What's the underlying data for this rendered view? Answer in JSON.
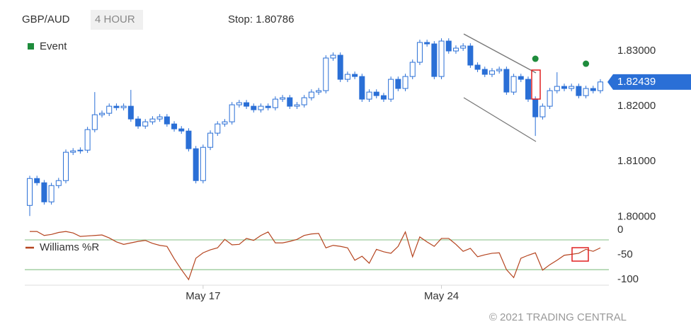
{
  "chart_data": [
    {
      "type": "candlestick",
      "title": "GBP/AUD",
      "subtitle": "4 HOUR",
      "annotation": "Stop: 1.80786",
      "categories": [
        null,
        null,
        null,
        null,
        null,
        null,
        null,
        null,
        null,
        null,
        null,
        null,
        null,
        null,
        null,
        null,
        null,
        null,
        null,
        null,
        null,
        null,
        null,
        null,
        "May 17",
        null,
        null,
        null,
        null,
        null,
        null,
        null,
        null,
        null,
        null,
        null,
        null,
        null,
        null,
        null,
        null,
        null,
        null,
        null,
        null,
        null,
        null,
        null,
        null,
        null,
        null,
        null,
        null,
        null,
        null,
        null,
        null,
        "May 24",
        null,
        null,
        null,
        null,
        null,
        null,
        null,
        null,
        null,
        null,
        null,
        null,
        null,
        null,
        null,
        null,
        null,
        null,
        null,
        null,
        null,
        null
      ],
      "open": [
        1.80205,
        1.80692,
        1.80615,
        1.80269,
        1.80564,
        1.80654,
        1.81167,
        1.81192,
        1.81205,
        1.81577,
        1.81846,
        1.81872,
        1.82,
        1.81974,
        1.82,
        1.81769,
        1.81641,
        1.81718,
        1.81769,
        1.81808,
        1.81679,
        1.8159,
        1.81551,
        1.81231,
        1.80654,
        1.81256,
        1.81513,
        1.81679,
        1.81718,
        1.82026,
        1.82064,
        1.82,
        1.81936,
        1.82,
        1.81974,
        1.82128,
        1.82154,
        1.82,
        1.82026,
        1.82154,
        1.82256,
        1.82282,
        1.82872,
        1.82923,
        1.82487,
        1.82577,
        1.82538,
        1.82128,
        1.82256,
        1.82192,
        1.82128,
        1.82487,
        1.82321,
        1.82538,
        1.82795,
        1.83154,
        1.83128,
        1.82538,
        1.83179,
        1.83,
        1.83051,
        1.8309,
        1.82744,
        1.82667,
        1.82577,
        1.82641,
        1.82667,
        1.82256,
        1.82538,
        1.82487,
        1.82128,
        1.81808,
        1.82,
        1.82282,
        1.82359,
        1.82321,
        1.82359,
        1.82192,
        1.82321,
        1.82282
      ],
      "high": [
        1.80742,
        1.80742,
        1.80665,
        1.80614,
        1.80704,
        1.81217,
        1.81242,
        1.81255,
        1.81627,
        1.82256,
        1.81922,
        1.8205,
        1.8205,
        1.8205,
        1.82295,
        1.81819,
        1.81768,
        1.81819,
        1.81858,
        1.81858,
        1.81729,
        1.8164,
        1.81601,
        1.81281,
        1.81306,
        1.81563,
        1.81729,
        1.81768,
        1.82076,
        1.82114,
        1.82114,
        1.8205,
        1.8205,
        1.8205,
        1.82178,
        1.82204,
        1.82204,
        1.82076,
        1.82204,
        1.82306,
        1.82332,
        1.82922,
        1.82973,
        1.82973,
        1.82627,
        1.82627,
        1.82588,
        1.82306,
        1.82306,
        1.82242,
        1.82537,
        1.82537,
        1.82588,
        1.82845,
        1.83204,
        1.83204,
        1.83178,
        1.83229,
        1.83229,
        1.83101,
        1.8314,
        1.8314,
        1.82794,
        1.82717,
        1.82691,
        1.82717,
        1.82717,
        1.82588,
        1.82588,
        1.82537,
        1.82178,
        1.8205,
        1.82332,
        1.82615,
        1.82409,
        1.82409,
        1.82409,
        1.82371,
        1.82371,
        1.82489
      ],
      "low": [
        1.80013,
        1.80565,
        1.80219,
        1.80219,
        1.80514,
        1.80604,
        1.81117,
        1.81142,
        1.81155,
        1.81527,
        1.81796,
        1.81822,
        1.81924,
        1.81924,
        1.81719,
        1.81591,
        1.81591,
        1.81668,
        1.81719,
        1.81629,
        1.8154,
        1.81501,
        1.81181,
        1.80604,
        1.80604,
        1.81206,
        1.81463,
        1.81629,
        1.81668,
        1.81976,
        1.8195,
        1.81886,
        1.81886,
        1.81924,
        1.81924,
        1.82078,
        1.8195,
        1.8195,
        1.81976,
        1.82104,
        1.82206,
        1.82232,
        1.82822,
        1.82437,
        1.82437,
        1.82488,
        1.82078,
        1.82078,
        1.82142,
        1.82078,
        1.82078,
        1.82271,
        1.82271,
        1.82488,
        1.82745,
        1.83078,
        1.82488,
        1.82488,
        1.8295,
        1.8295,
        1.83001,
        1.82694,
        1.82617,
        1.82527,
        1.82527,
        1.82591,
        1.82206,
        1.82206,
        1.82437,
        1.82078,
        1.81462,
        1.81758,
        1.8195,
        1.82232,
        1.82271,
        1.82271,
        1.82142,
        1.82142,
        1.82232,
        1.82232
      ],
      "close": [
        1.80692,
        1.80615,
        1.80269,
        1.80564,
        1.80654,
        1.81167,
        1.81192,
        1.81205,
        1.81577,
        1.81846,
        1.81872,
        1.82,
        1.81974,
        1.82,
        1.81769,
        1.81641,
        1.81718,
        1.81769,
        1.81808,
        1.81679,
        1.8159,
        1.81551,
        1.81231,
        1.80654,
        1.81256,
        1.81513,
        1.81679,
        1.81718,
        1.82026,
        1.82064,
        1.82,
        1.81936,
        1.82,
        1.81974,
        1.82128,
        1.82154,
        1.82,
        1.82026,
        1.82154,
        1.82256,
        1.82282,
        1.82872,
        1.82923,
        1.82487,
        1.82577,
        1.82538,
        1.82128,
        1.82256,
        1.82192,
        1.82128,
        1.82487,
        1.82321,
        1.82538,
        1.82795,
        1.83154,
        1.83128,
        1.82538,
        1.83179,
        1.83,
        1.83051,
        1.8309,
        1.82744,
        1.82667,
        1.82577,
        1.82641,
        1.82667,
        1.82256,
        1.82538,
        1.82487,
        1.82128,
        1.81808,
        1.82,
        1.82282,
        1.82359,
        1.82321,
        1.82359,
        1.82192,
        1.82321,
        1.82282,
        1.82439
      ],
      "up_color": "#ffffff",
      "down_color": "#2a6fd6",
      "outline_color": "#2a6fd6",
      "ylim": [
        1.7985,
        1.8341
      ],
      "yticks": [
        {
          "value": 1.8,
          "label": "1.80000"
        },
        {
          "value": 1.81,
          "label": "1.81000"
        },
        {
          "value": 1.82,
          "label": "1.82000"
        },
        {
          "value": 1.83,
          "label": "1.83000"
        }
      ],
      "last_price": 1.82439,
      "events": {
        "name": "Event",
        "color": "#1e8c3c",
        "values": [
          null,
          null,
          null,
          null,
          null,
          null,
          null,
          null,
          null,
          null,
          null,
          null,
          null,
          null,
          null,
          null,
          null,
          null,
          null,
          null,
          null,
          null,
          null,
          null,
          null,
          null,
          null,
          null,
          null,
          null,
          null,
          null,
          null,
          null,
          null,
          null,
          null,
          null,
          null,
          null,
          null,
          null,
          null,
          null,
          null,
          null,
          null,
          null,
          null,
          null,
          null,
          null,
          null,
          null,
          null,
          null,
          null,
          null,
          null,
          null,
          null,
          null,
          null,
          null,
          null,
          null,
          null,
          null,
          null,
          null,
          1.82859,
          null,
          null,
          null,
          null,
          null,
          null,
          1.82769,
          null,
          null
        ]
      }
    },
    {
      "type": "line",
      "series": [
        {
          "name": "Williams %R",
          "color": "#b5441f",
          "values": [
            -3,
            -3,
            -11,
            -9,
            -5,
            -3,
            -6,
            -13,
            -12,
            -11,
            -10,
            -16,
            -24,
            -29,
            -26,
            -23,
            -21,
            -27,
            -31,
            -33,
            -58,
            -80,
            -100,
            -57,
            -46,
            -40,
            -36,
            -19,
            -30,
            -29,
            -17,
            -21,
            -11,
            -4,
            -26,
            -26,
            -23,
            -19,
            -11,
            -8,
            -7,
            -36,
            -31,
            -33,
            -36,
            -61,
            -53,
            -67,
            -39,
            -44,
            -47,
            -33,
            -4,
            -54,
            -14,
            -24,
            -33,
            -17,
            -17,
            -29,
            -43,
            -37,
            -54,
            -50,
            -47,
            -46,
            -80,
            -96,
            -57,
            -51,
            -46,
            -81,
            -70,
            -61,
            -51,
            -49,
            -47,
            -39,
            -43,
            -36
          ]
        }
      ],
      "ylim": [
        -107,
        10
      ],
      "yticks": [
        0,
        -50,
        -100
      ],
      "levels": [
        -20,
        -80
      ],
      "level_color": "#9ccc9c"
    }
  ],
  "footer": "© 2021 TRADING CENTRAL"
}
